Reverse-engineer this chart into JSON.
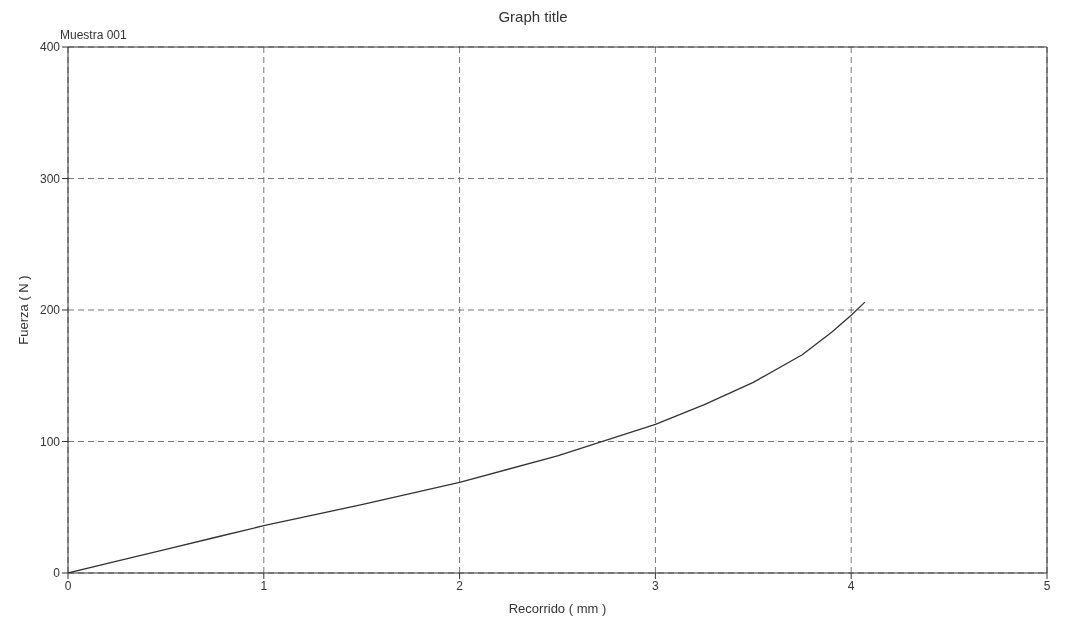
{
  "chart_data": {
    "type": "line",
    "title": "Graph title",
    "xlabel": "Recorrido ( mm )",
    "ylabel": "Fuerza ( N )",
    "annotations": [
      "Muestra 001"
    ],
    "x": [
      0,
      0.25,
      0.5,
      0.75,
      1,
      1.5,
      2,
      2.5,
      3,
      3.25,
      3.5,
      3.75,
      3.9,
      4,
      4.07
    ],
    "series": [
      {
        "color": "#333333",
        "values": [
          0,
          9,
          18,
          27,
          36,
          52,
          69,
          89,
          113,
          128,
          145,
          166,
          183,
          196,
          206
        ]
      }
    ],
    "xlim": [
      0,
      5
    ],
    "xticks": [
      0,
      1,
      2,
      3,
      4,
      5
    ],
    "ylim": [
      0,
      400
    ],
    "yticks": [
      0,
      100,
      200,
      300,
      400
    ],
    "grid": true,
    "marker": "none",
    "line_style": "solid",
    "legend": false
  }
}
